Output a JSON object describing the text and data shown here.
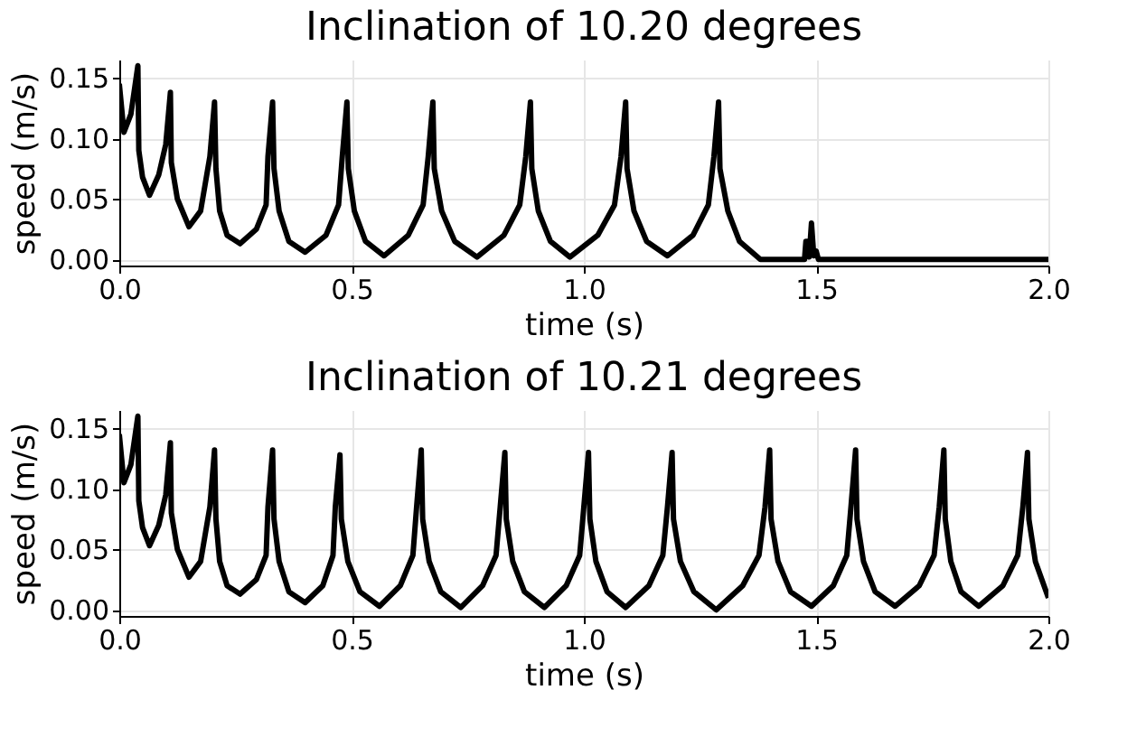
{
  "chart_data": [
    {
      "type": "line",
      "title": "Inclination of 10.20 degrees",
      "xlabel": "time (s)",
      "ylabel": "speed (m/s)",
      "color": "#000000",
      "grid": true,
      "line_style": "solid",
      "xlim": [
        0,
        2
      ],
      "xticks": [
        {
          "value": 0,
          "label": "0.0"
        },
        {
          "value": 0.5,
          "label": "0.5"
        },
        {
          "value": 1,
          "label": "1.0"
        },
        {
          "value": 1.5,
          "label": "1.5"
        },
        {
          "value": 2,
          "label": "2.0"
        }
      ],
      "ylim": [
        -0.005,
        0.165
      ],
      "yticks": [
        {
          "value": 0,
          "label": "0.00"
        },
        {
          "value": 0.05,
          "label": "0.05"
        },
        {
          "value": 0.1,
          "label": "0.10"
        },
        {
          "value": 0.15,
          "label": "0.15"
        }
      ],
      "x": [
        0,
        0.01,
        0.025,
        0.04,
        0.042,
        0.05,
        0.065,
        0.085,
        0.1,
        0.11,
        0.112,
        0.125,
        0.15,
        0.175,
        0.195,
        0.205,
        0.208,
        0.216,
        0.232,
        0.26,
        0.295,
        0.316,
        0.32,
        0.33,
        0.333,
        0.344,
        0.365,
        0.4,
        0.445,
        0.472,
        0.48,
        0.49,
        0.493,
        0.506,
        0.53,
        0.57,
        0.622,
        0.654,
        0.665,
        0.675,
        0.678,
        0.694,
        0.722,
        0.77,
        0.828,
        0.862,
        0.875,
        0.885,
        0.888,
        0.902,
        0.928,
        0.97,
        1.03,
        1.066,
        1.08,
        1.09,
        1.093,
        1.108,
        1.135,
        1.18,
        1.235,
        1.268,
        1.28,
        1.29,
        1.293,
        1.31,
        1.335,
        1.38,
        1.475,
        1.478,
        1.483,
        1.485,
        1.49,
        1.495,
        1.5,
        1.505,
        2
      ],
      "values": [
        0.145,
        0.105,
        0.12,
        0.16,
        0.09,
        0.068,
        0.053,
        0.07,
        0.095,
        0.138,
        0.08,
        0.05,
        0.027,
        0.04,
        0.085,
        0.13,
        0.075,
        0.04,
        0.02,
        0.013,
        0.025,
        0.045,
        0.085,
        0.13,
        0.075,
        0.04,
        0.015,
        0.006,
        0.02,
        0.045,
        0.085,
        0.13,
        0.075,
        0.04,
        0.015,
        0.003,
        0.02,
        0.045,
        0.085,
        0.13,
        0.075,
        0.04,
        0.015,
        0.002,
        0.02,
        0.045,
        0.085,
        0.13,
        0.075,
        0.04,
        0.015,
        0.002,
        0.02,
        0.045,
        0.085,
        0.13,
        0.075,
        0.04,
        0.015,
        0.003,
        0.02,
        0.045,
        0.085,
        0.13,
        0.075,
        0.04,
        0.015,
        0,
        0,
        0.015,
        0.015,
        0.002,
        0.03,
        0.003,
        0.007,
        0,
        0
      ]
    },
    {
      "type": "line",
      "title": "Inclination of 10.21 degrees",
      "xlabel": "time (s)",
      "ylabel": "speed (m/s)",
      "color": "#000000",
      "grid": true,
      "line_style": "solid",
      "xlim": [
        0,
        2
      ],
      "xticks": [
        {
          "value": 0,
          "label": "0.0"
        },
        {
          "value": 0.5,
          "label": "0.5"
        },
        {
          "value": 1,
          "label": "1.0"
        },
        {
          "value": 1.5,
          "label": "1.5"
        },
        {
          "value": 2,
          "label": "2.0"
        }
      ],
      "ylim": [
        -0.005,
        0.165
      ],
      "yticks": [
        {
          "value": 0,
          "label": "0.00"
        },
        {
          "value": 0.05,
          "label": "0.05"
        },
        {
          "value": 0.1,
          "label": "0.10"
        },
        {
          "value": 0.15,
          "label": "0.15"
        }
      ],
      "x": [
        0,
        0.01,
        0.025,
        0.04,
        0.042,
        0.05,
        0.065,
        0.085,
        0.1,
        0.11,
        0.112,
        0.125,
        0.15,
        0.175,
        0.195,
        0.205,
        0.208,
        0.216,
        0.232,
        0.26,
        0.295,
        0.316,
        0.32,
        0.33,
        0.333,
        0.344,
        0.365,
        0.4,
        0.438,
        0.46,
        0.465,
        0.475,
        0.478,
        0.492,
        0.518,
        0.56,
        0.605,
        0.632,
        0.64,
        0.65,
        0.653,
        0.667,
        0.692,
        0.735,
        0.782,
        0.811,
        0.82,
        0.83,
        0.833,
        0.847,
        0.872,
        0.915,
        0.962,
        0.991,
        1,
        1.01,
        1.013,
        1.026,
        1.05,
        1.09,
        1.14,
        1.17,
        1.18,
        1.19,
        1.193,
        1.208,
        1.237,
        1.285,
        1.342,
        1.377,
        1.39,
        1.4,
        1.403,
        1.418,
        1.445,
        1.49,
        1.537,
        1.566,
        1.575,
        1.585,
        1.588,
        1.602,
        1.627,
        1.67,
        1.722,
        1.754,
        1.765,
        1.775,
        1.778,
        1.79,
        1.812,
        1.85,
        1.902,
        1.934,
        1.945,
        1.955,
        1.958,
        1.972,
        2
      ],
      "values": [
        0.145,
        0.105,
        0.12,
        0.16,
        0.09,
        0.068,
        0.053,
        0.07,
        0.095,
        0.138,
        0.08,
        0.05,
        0.027,
        0.04,
        0.085,
        0.132,
        0.075,
        0.04,
        0.02,
        0.013,
        0.025,
        0.045,
        0.085,
        0.132,
        0.075,
        0.04,
        0.015,
        0.006,
        0.02,
        0.045,
        0.085,
        0.128,
        0.075,
        0.04,
        0.015,
        0.003,
        0.02,
        0.045,
        0.085,
        0.132,
        0.075,
        0.04,
        0.015,
        0.002,
        0.02,
        0.045,
        0.085,
        0.13,
        0.075,
        0.04,
        0.015,
        0.002,
        0.02,
        0.045,
        0.085,
        0.13,
        0.075,
        0.04,
        0.015,
        0.002,
        0.02,
        0.045,
        0.085,
        0.13,
        0.075,
        0.04,
        0.015,
        0,
        0.02,
        0.045,
        0.085,
        0.132,
        0.075,
        0.04,
        0.015,
        0.003,
        0.02,
        0.045,
        0.085,
        0.132,
        0.075,
        0.04,
        0.015,
        0.003,
        0.02,
        0.045,
        0.085,
        0.132,
        0.075,
        0.04,
        0.015,
        0.003,
        0.02,
        0.045,
        0.085,
        0.13,
        0.075,
        0.04,
        0.01
      ]
    }
  ]
}
